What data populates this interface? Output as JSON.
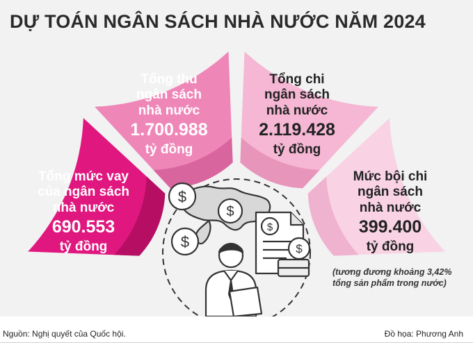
{
  "title": "DỰ TOÁN NGÂN SÁCH NHÀ NƯỚC NĂM 2024",
  "segments": {
    "borrowing": {
      "label_lines": [
        "Tổng mức vay",
        "của ngân sách",
        "nhà nước"
      ],
      "value": "690.553",
      "unit": "tỷ đồng"
    },
    "revenue": {
      "label_lines": [
        "Tổng thu",
        "ngân sách",
        "nhà nước"
      ],
      "value": "1.700.988",
      "unit": "tỷ đồng"
    },
    "expenditure": {
      "label_lines": [
        "Tổng chi",
        "ngân sách",
        "nhà nước"
      ],
      "value": "2.119.428",
      "unit": "tỷ đồng"
    },
    "deficit": {
      "label_lines": [
        "Mức bội chi",
        "ngân sách",
        "nhà nước"
      ],
      "value": "399.400",
      "unit": "tỷ đồng",
      "note_lines": [
        "(tương đương khoảng 3,42%",
        "tổng sản phẩm trong nước)"
      ]
    }
  },
  "colors": {
    "borrowing": "#e0177f",
    "revenue": "#ef86b8",
    "expenditure": "#f5b7d3",
    "deficit": "#f9d3e4",
    "text_light": "#ffffff",
    "text_dark": "#222222"
  },
  "footer": {
    "source": "Nguồn: Nghị quyết của Quốc hội.",
    "credit": "Đồ họa: Phương Anh"
  }
}
